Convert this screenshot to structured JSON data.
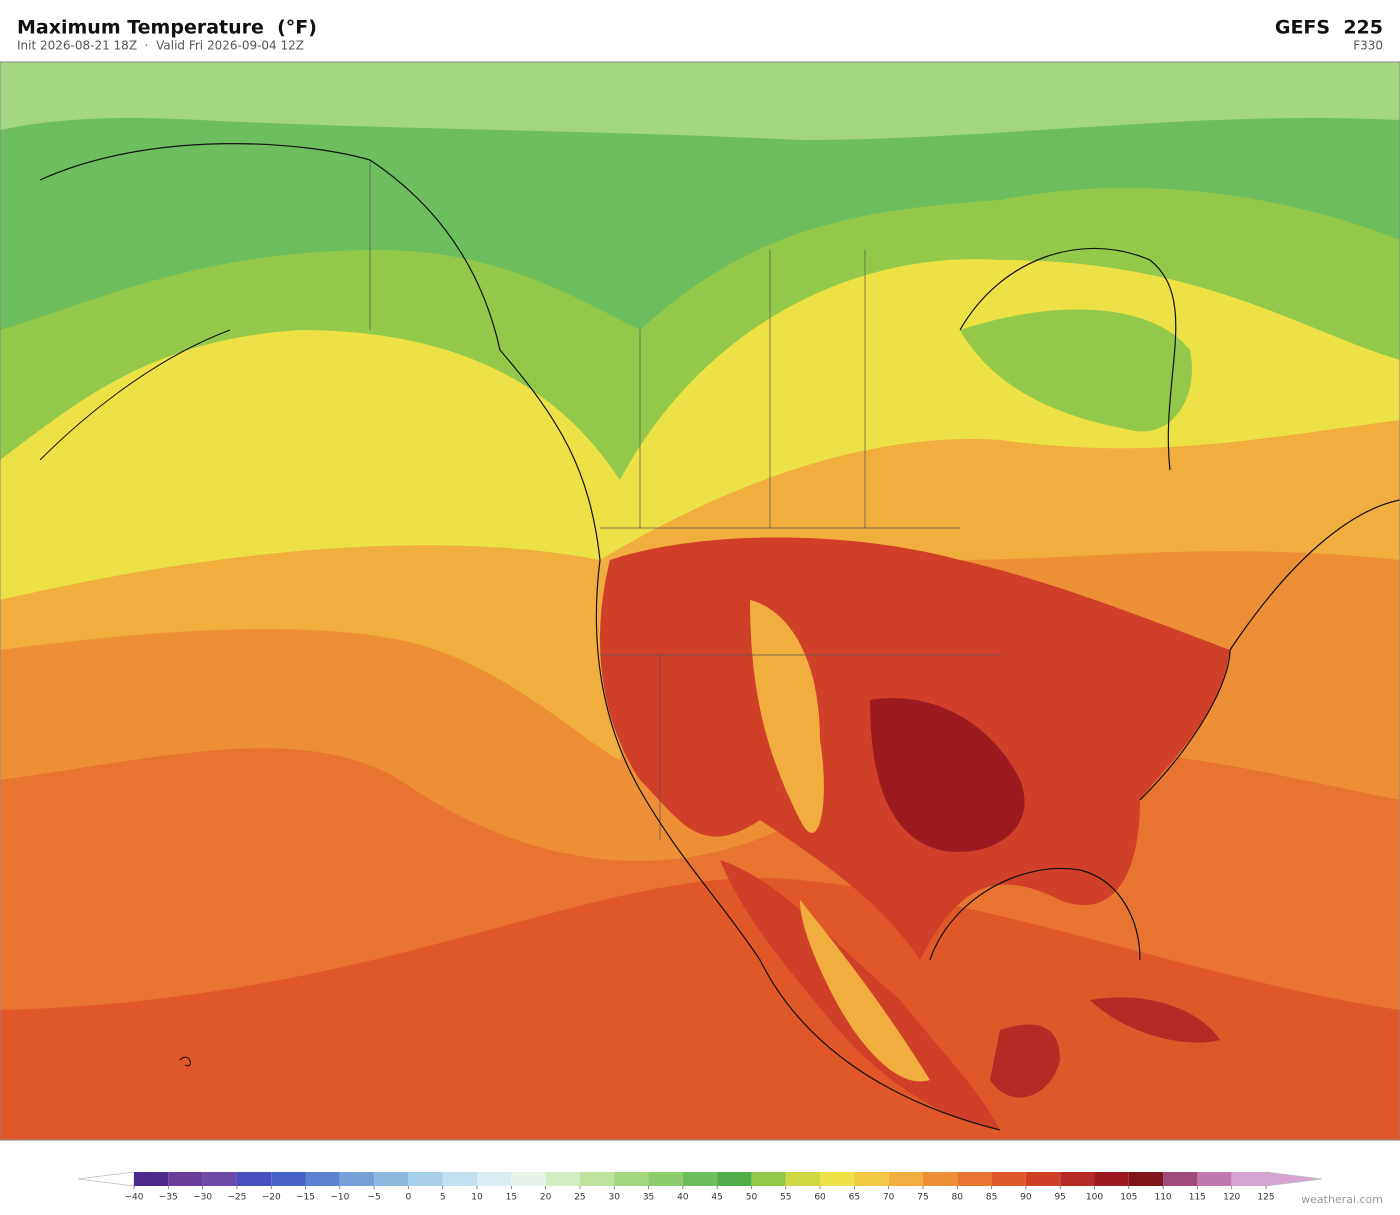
{
  "header": {
    "title": "Maximum Temperature  (°F)",
    "subtitle": "Init 2026-08-21 18Z  ·  Valid Fri 2026-09-04 12Z",
    "model": "GEFS  225",
    "forecast_hour": "F330"
  },
  "colorbar": {
    "ticks": [
      {
        "value": -40,
        "label": "−40"
      },
      {
        "value": -35,
        "label": "−35"
      },
      {
        "value": -30,
        "label": "−30"
      },
      {
        "value": -25,
        "label": "−25"
      },
      {
        "value": -20,
        "label": "−20"
      },
      {
        "value": -15,
        "label": "−15"
      },
      {
        "value": -10,
        "label": "−10"
      },
      {
        "value": -5,
        "label": "−5"
      },
      0,
      5,
      10,
      15,
      20,
      25,
      30,
      35,
      40,
      45,
      50,
      55,
      60,
      65,
      70,
      75,
      80,
      85,
      90,
      95,
      100,
      105,
      110,
      115,
      120,
      125
    ],
    "colors": [
      "#4b2a8c",
      "#6a3d9a",
      "#6c4aa8",
      "#4a4fc0",
      "#4763c8",
      "#5b82d0",
      "#78a0d8",
      "#8fb8e0",
      "#a8cfe8",
      "#c3e0ef",
      "#daecf2",
      "#e8f4ea",
      "#d4ecc4",
      "#bfe29c",
      "#a3d67e",
      "#8ccc6c",
      "#6cbf5c",
      "#4fae4a",
      "#93c84a",
      "#cfd842",
      "#ece245",
      "#f2c945",
      "#f1ad3e",
      "#ec8f36",
      "#e87432",
      "#e0582a",
      "#d03f28",
      "#b82825",
      "#9c1b20",
      "#7f1519",
      "#a04a7a",
      "#c07aae",
      "#d6a4d0"
    ],
    "under_color": "#ffffff",
    "over_color": "#d6a4d0"
  },
  "watermark": "weatherai.com"
}
